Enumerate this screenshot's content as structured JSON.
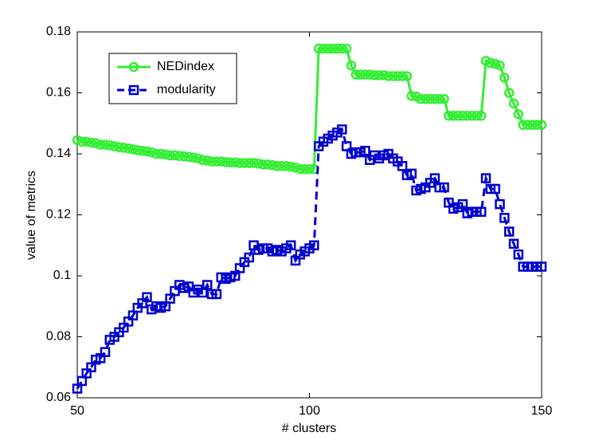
{
  "chart_data": {
    "type": "line",
    "xlabel": "# clusters",
    "ylabel": "value of metrics",
    "x": [
      50,
      51,
      52,
      53,
      54,
      55,
      56,
      57,
      58,
      59,
      60,
      61,
      62,
      63,
      64,
      65,
      66,
      67,
      68,
      69,
      70,
      71,
      72,
      73,
      74,
      75,
      76,
      77,
      78,
      79,
      80,
      81,
      82,
      83,
      84,
      85,
      86,
      87,
      88,
      89,
      90,
      91,
      92,
      93,
      94,
      95,
      96,
      97,
      98,
      99,
      100,
      101,
      102,
      103,
      104,
      105,
      106,
      107,
      108,
      109,
      110,
      111,
      112,
      113,
      114,
      115,
      116,
      117,
      118,
      119,
      120,
      121,
      122,
      123,
      124,
      125,
      126,
      127,
      128,
      129,
      130,
      131,
      132,
      133,
      134,
      135,
      136,
      137,
      138,
      139,
      140,
      141,
      142,
      143,
      144,
      145,
      146,
      147,
      148,
      149,
      150
    ],
    "series": [
      {
        "name": "NEDindex",
        "color": "#33ee33",
        "linestyle": "solid",
        "marker": "circle",
        "values": [
          0.1445,
          0.144,
          0.144,
          0.1437,
          0.1435,
          0.143,
          0.143,
          0.1428,
          0.1425,
          0.1422,
          0.142,
          0.1418,
          0.1415,
          0.1412,
          0.141,
          0.1408,
          0.1405,
          0.14,
          0.14,
          0.1398,
          0.1395,
          0.1395,
          0.1393,
          0.1392,
          0.139,
          0.1388,
          0.1385,
          0.138,
          0.1378,
          0.1375,
          0.1375,
          0.1375,
          0.1373,
          0.1372,
          0.1372,
          0.137,
          0.137,
          0.137,
          0.137,
          0.1368,
          0.1365,
          0.1365,
          0.1363,
          0.136,
          0.136,
          0.136,
          0.1358,
          0.1355,
          0.135,
          0.135,
          0.135,
          0.135,
          0.1745,
          0.1745,
          0.1745,
          0.1745,
          0.1745,
          0.1745,
          0.1745,
          0.169,
          0.166,
          0.166,
          0.166,
          0.166,
          0.1658,
          0.1658,
          0.1658,
          0.1655,
          0.1655,
          0.1655,
          0.1655,
          0.1655,
          0.159,
          0.1588,
          0.158,
          0.158,
          0.158,
          0.158,
          0.158,
          0.158,
          0.1525,
          0.1525,
          0.1525,
          0.1525,
          0.1525,
          0.1525,
          0.1525,
          0.1525,
          0.1705,
          0.1698,
          0.1695,
          0.169,
          0.165,
          0.16,
          0.1565,
          0.153,
          0.1495,
          0.1495,
          0.1495,
          0.1495,
          0.1495
        ]
      },
      {
        "name": "modularity",
        "color": "#0000cc",
        "linestyle": "dashed",
        "marker": "square",
        "values": [
          0.063,
          0.0655,
          0.068,
          0.07,
          0.0725,
          0.073,
          0.075,
          0.079,
          0.08,
          0.0815,
          0.083,
          0.085,
          0.087,
          0.0895,
          0.091,
          0.093,
          0.089,
          0.09,
          0.0895,
          0.09,
          0.0925,
          0.095,
          0.097,
          0.096,
          0.0965,
          0.0945,
          0.0955,
          0.0945,
          0.097,
          0.094,
          0.094,
          0.0995,
          0.099,
          0.0995,
          0.1,
          0.1025,
          0.1045,
          0.106,
          0.11,
          0.1085,
          0.109,
          0.109,
          0.108,
          0.1085,
          0.108,
          0.109,
          0.11,
          0.105,
          0.107,
          0.108,
          0.109,
          0.11,
          0.1425,
          0.144,
          0.145,
          0.146,
          0.147,
          0.148,
          0.1425,
          0.14,
          0.1405,
          0.1405,
          0.141,
          0.138,
          0.1395,
          0.1385,
          0.1395,
          0.14,
          0.1385,
          0.1375,
          0.136,
          0.133,
          0.1335,
          0.128,
          0.1285,
          0.129,
          0.1305,
          0.132,
          0.129,
          0.129,
          0.124,
          0.122,
          0.1225,
          0.1235,
          0.1205,
          0.121,
          0.121,
          0.121,
          0.132,
          0.1285,
          0.1285,
          0.1235,
          0.119,
          0.1145,
          0.1105,
          0.107,
          0.103,
          0.103,
          0.103,
          0.103,
          0.103
        ]
      }
    ],
    "xlim": [
      50,
      150
    ],
    "xticks": [
      50,
      100,
      150
    ],
    "ylim": [
      0.06,
      0.18
    ],
    "yticks": [
      0.06,
      0.08,
      0.1,
      0.12,
      0.14,
      0.16,
      0.18
    ],
    "grid": false,
    "legend": "upper-left"
  }
}
